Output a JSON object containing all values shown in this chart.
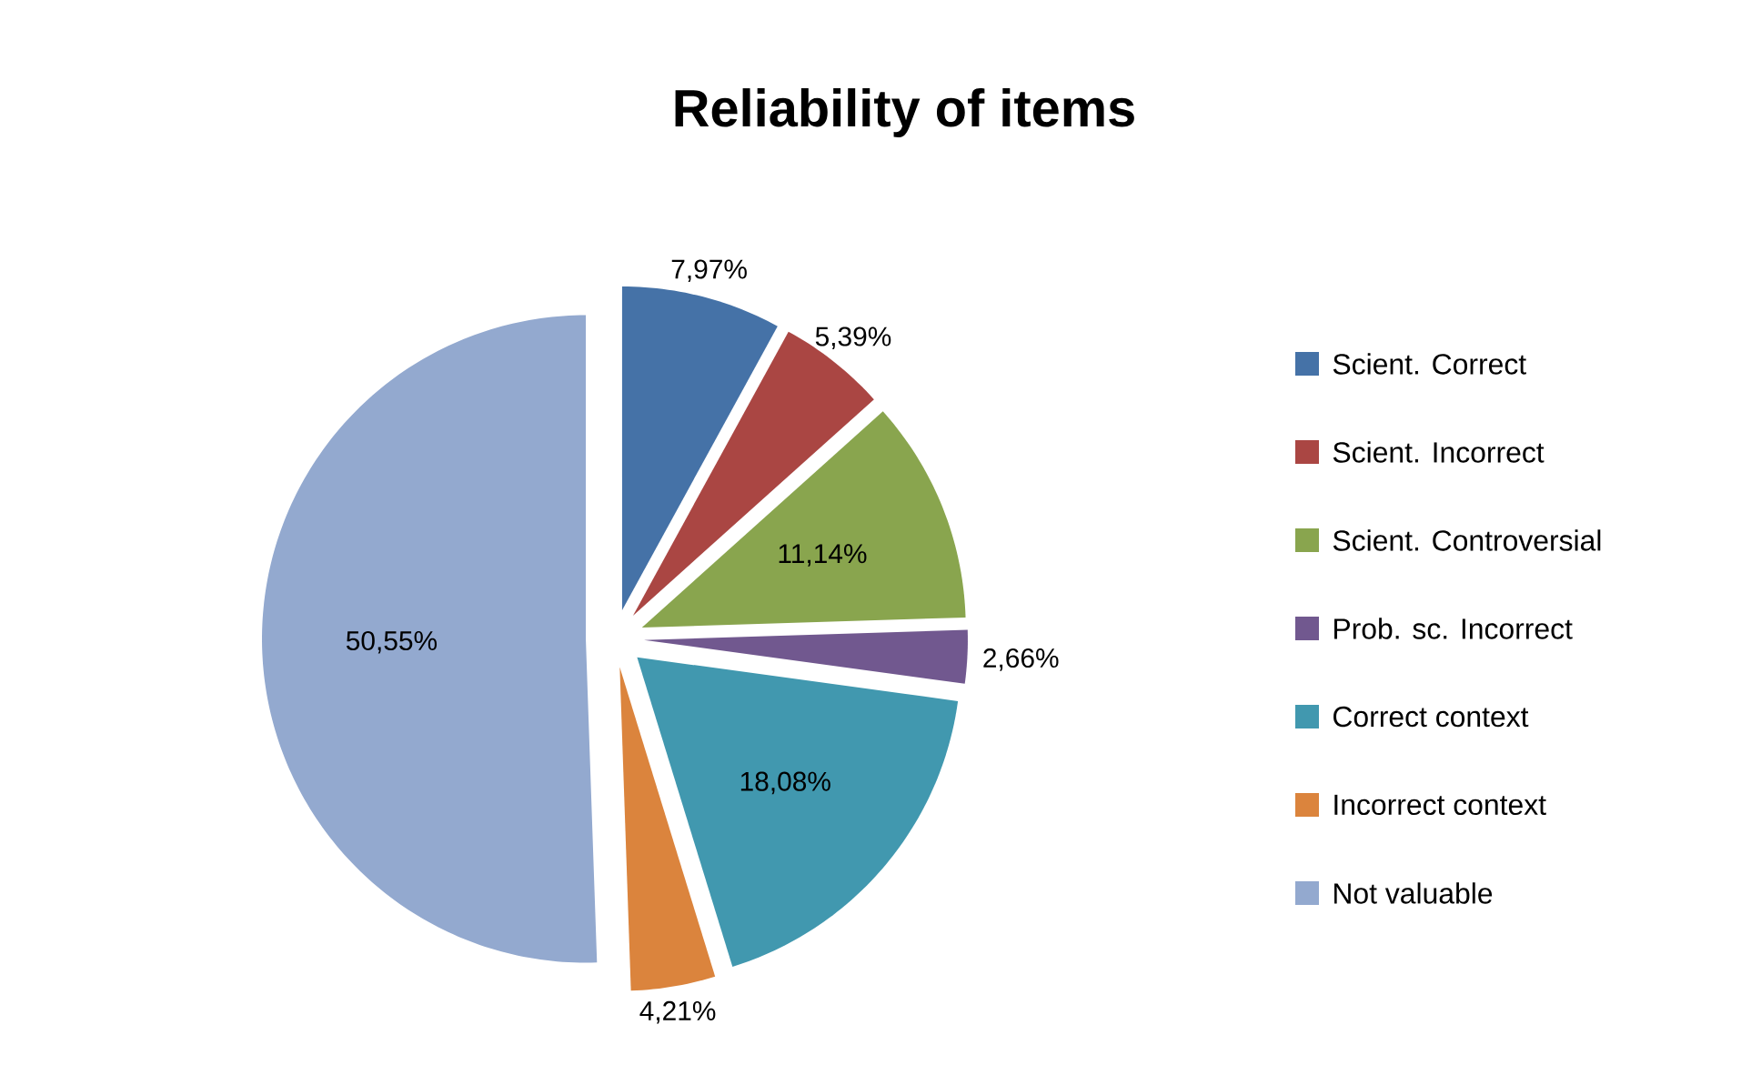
{
  "chart_data": {
    "type": "pie",
    "title": "Reliability of items",
    "categories": [
      "Scient. Correct",
      "Scient. Incorrect",
      "Scient. Controversial",
      "Prob. sc. Incorrect",
      "Correct context",
      "Incorrect context",
      "Not valuable"
    ],
    "values": [
      7.97,
      5.39,
      11.14,
      2.66,
      18.08,
      4.21,
      50.55
    ],
    "value_labels": [
      "7,97%",
      "5,39%",
      "11,14%",
      "2,66%",
      "18,08%",
      "4,21%",
      "50,55%"
    ],
    "colors": [
      "#4572a7",
      "#aa4643",
      "#89a54e",
      "#71588f",
      "#4198af",
      "#db843d",
      "#93a9cf"
    ],
    "legend": "right"
  }
}
